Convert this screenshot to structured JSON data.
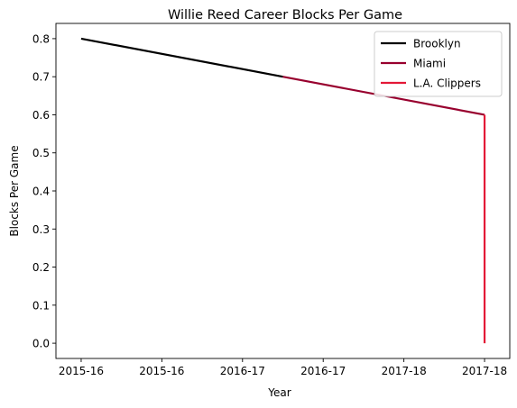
{
  "chart_data": {
    "type": "line",
    "title": "Willie Reed Career Blocks Per Game",
    "xlabel": "Year",
    "ylabel": "Blocks Per Game",
    "x_tick_labels": [
      "2015-16",
      "2015-16",
      "2016-17",
      "2016-17",
      "2017-18",
      "2017-18"
    ],
    "y_ticks": [
      0.0,
      0.1,
      0.2,
      0.3,
      0.4,
      0.5,
      0.6,
      0.7,
      0.8
    ],
    "y_tick_labels": [
      "0.0",
      "0.1",
      "0.2",
      "0.3",
      "0.4",
      "0.5",
      "0.6",
      "0.7",
      "0.8"
    ],
    "xlim": [
      -0.125,
      2.125
    ],
    "ylim": [
      -0.04,
      0.84
    ],
    "grid": false,
    "legend_position": "top-right",
    "series": [
      {
        "name": "Brooklyn",
        "color": "#000000",
        "points": [
          [
            0,
            0.8
          ],
          [
            1,
            0.7
          ]
        ]
      },
      {
        "name": "Miami",
        "color": "#98002E",
        "points": [
          [
            1,
            0.7
          ],
          [
            2,
            0.6
          ]
        ]
      },
      {
        "name": "L.A. Clippers",
        "color": "#E31837",
        "points": [
          [
            2,
            0.6
          ],
          [
            2,
            0.0
          ]
        ]
      }
    ]
  }
}
